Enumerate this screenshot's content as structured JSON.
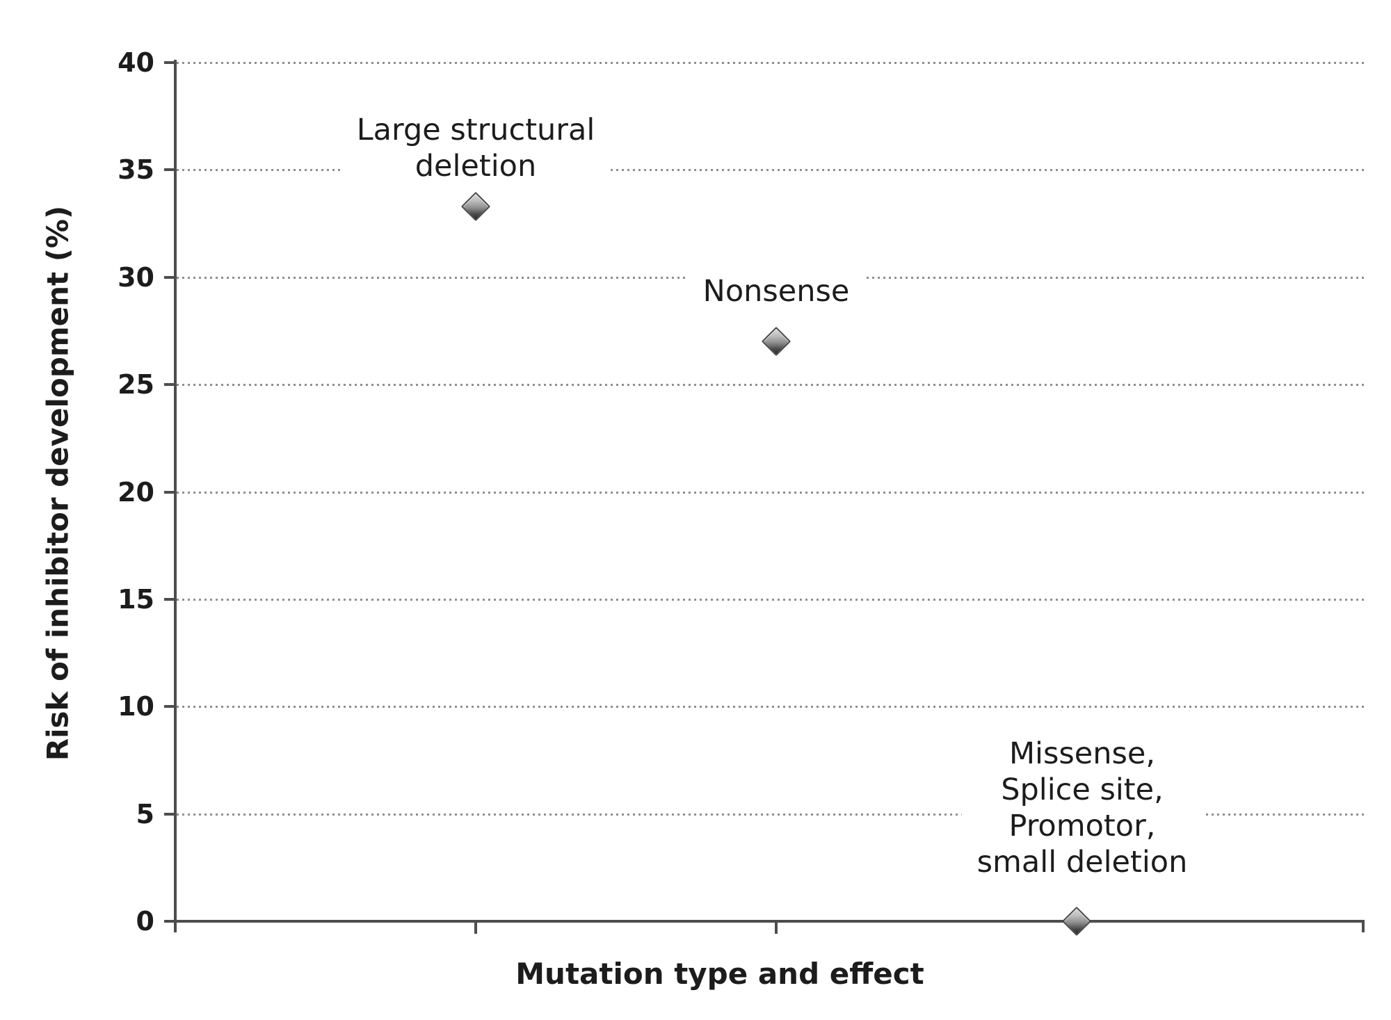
{
  "chart_data": {
    "type": "scatter",
    "title": "",
    "xlabel": "Mutation type and effect",
    "ylabel": "Risk of inhibitor development (%)",
    "ylim": [
      0,
      40
    ],
    "yticks": [
      40,
      35,
      30,
      25,
      20,
      15,
      10,
      5,
      0
    ],
    "xticks_labeled": false,
    "grid": "horizontal-dotted",
    "legend": "none",
    "marker": "diamond",
    "points": [
      {
        "label": "Large structural deletion",
        "label_lines": [
          "Large structural",
          "deletion"
        ],
        "x_index": 1,
        "value": 33.3
      },
      {
        "label": "Nonsense",
        "label_lines": [
          "Nonsense"
        ],
        "x_index": 2,
        "value": 27
      },
      {
        "label": "Missense, Splice site, Promotor, small deletion",
        "label_lines": [
          "Missense,",
          "Splice site,",
          "Promotor,",
          "small deletion"
        ],
        "x_index": 3,
        "value": 0
      }
    ]
  },
  "colors": {
    "background": "#ffffff",
    "axis": "#4d4d4d",
    "gridline": "#8e8e8e",
    "text": "#1c1c1c",
    "marker_border": "#494949",
    "marker_gradient_top": "#d9d9d9",
    "marker_gradient_bottom": "#262626"
  }
}
